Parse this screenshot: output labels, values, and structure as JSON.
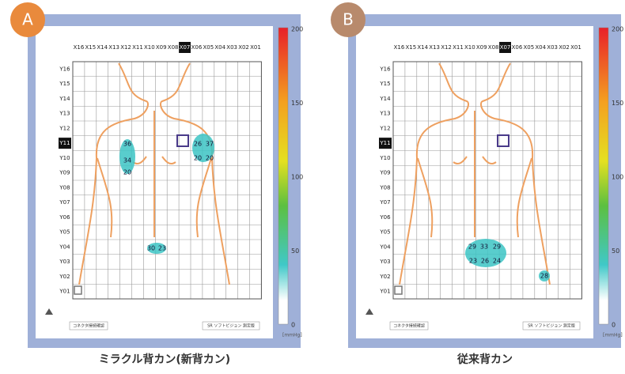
{
  "panels": [
    {
      "badge": "A",
      "caption": "ミラクル背カン(新背カン)",
      "columns": [
        "X16",
        "X15",
        "X14",
        "X13",
        "X12",
        "X11",
        "X10",
        "X09",
        "X08",
        "X07",
        "X06",
        "X05",
        "X04",
        "X03",
        "X02",
        "X01"
      ],
      "rows": [
        "Y16",
        "Y15",
        "Y14",
        "Y13",
        "Y12",
        "Y11",
        "Y10",
        "Y09",
        "Y08",
        "Y07",
        "Y06",
        "Y05",
        "Y04",
        "Y03",
        "Y02",
        "Y01"
      ],
      "readings": [
        "36",
        "34",
        "20",
        "26",
        "37",
        "20",
        "20",
        "30",
        "23"
      ],
      "scale": {
        "ticks": [
          "200",
          "150",
          "100",
          "50",
          "0"
        ],
        "unit": "[mmHg]"
      },
      "footer_left": "コネクタ接続確認",
      "footer_right": "SR ソフトビジョン 測定版"
    },
    {
      "badge": "B",
      "caption": "従来背カン",
      "columns": [
        "X16",
        "X15",
        "X14",
        "X13",
        "X12",
        "X11",
        "X10",
        "X09",
        "X08",
        "X07",
        "X06",
        "X05",
        "X04",
        "X03",
        "X02",
        "X01"
      ],
      "rows": [
        "Y16",
        "Y15",
        "Y14",
        "Y13",
        "Y12",
        "Y11",
        "Y10",
        "Y09",
        "Y08",
        "Y07",
        "Y06",
        "Y05",
        "Y04",
        "Y03",
        "Y02",
        "Y01"
      ],
      "readings": [
        "29",
        "33",
        "29",
        "23",
        "26",
        "24",
        "28"
      ],
      "scale": {
        "ticks": [
          "200",
          "150",
          "100",
          "50",
          "0"
        ],
        "unit": "[mmHg]"
      },
      "footer_left": "コネクタ接続確認",
      "footer_right": "SR ソフトビジョン 測定版"
    }
  ]
}
